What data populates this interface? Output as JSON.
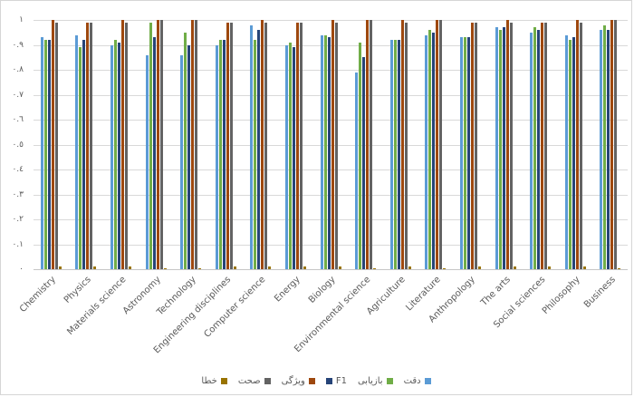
{
  "chart_data": {
    "type": "bar",
    "title": "",
    "xlabel": "",
    "ylabel": "",
    "ylim": [
      0,
      1
    ],
    "ytick_step": 0.1,
    "yticklabels_top_to_bottom": [
      "١",
      "٠.٩",
      "٠.٨",
      "٠.٧",
      "٠.٦",
      "٠.٥",
      "٠.٤",
      "٠.٣",
      "٠.٢",
      "٠.١",
      "٠"
    ],
    "grid": "horizontal",
    "gridline_color": "#d9d9d9",
    "tick_label_color": "#595959",
    "legend_position": "bottom-center",
    "legend_direction": "rtl",
    "categories": [
      "Chemistry",
      "Physics",
      "Materials science",
      "Astronomy",
      "Technology",
      "Engineering disciplines",
      "Computer science",
      "Energy",
      "Biology",
      "Environmental science",
      "Agriculture",
      "Literature",
      "Anthropology",
      "The arts",
      "Social sciences",
      "Philosophy",
      "Business"
    ],
    "series": [
      {
        "name": "دقت",
        "color": "#5B9BD5",
        "values": [
          0.93,
          0.94,
          0.9,
          0.86,
          0.86,
          0.9,
          0.98,
          0.9,
          0.94,
          0.79,
          0.92,
          0.94,
          0.93,
          0.97,
          0.95,
          0.94,
          0.96
        ]
      },
      {
        "name": "بازیابی",
        "color": "#70AD47",
        "values": [
          0.92,
          0.89,
          0.92,
          0.99,
          0.95,
          0.92,
          0.92,
          0.91,
          0.94,
          0.91,
          0.92,
          0.96,
          0.93,
          0.96,
          0.97,
          0.92,
          0.98
        ]
      },
      {
        "name": "F1",
        "color": "#264478",
        "values": [
          0.92,
          0.92,
          0.91,
          0.93,
          0.9,
          0.92,
          0.96,
          0.89,
          0.93,
          0.85,
          0.92,
          0.95,
          0.93,
          0.97,
          0.96,
          0.93,
          0.96
        ]
      },
      {
        "name": "ویژگی",
        "color": "#9E480E",
        "values": [
          1.0,
          0.99,
          1.0,
          1.0,
          1.0,
          0.99,
          1.0,
          0.99,
          1.0,
          1.0,
          1.0,
          1.0,
          0.99,
          1.0,
          0.99,
          1.0,
          1.0
        ]
      },
      {
        "name": "صحت",
        "color": "#636363",
        "values": [
          0.99,
          0.99,
          0.99,
          1.0,
          1.0,
          0.99,
          0.99,
          0.99,
          0.99,
          1.0,
          0.99,
          1.0,
          0.99,
          0.99,
          0.99,
          0.99,
          1.0
        ]
      },
      {
        "name": "خطا",
        "color": "#997300",
        "values": [
          0.01,
          0.01,
          0.01,
          0.005,
          0.005,
          0.01,
          0.01,
          0.01,
          0.01,
          0.005,
          0.01,
          0.005,
          0.01,
          0.01,
          0.01,
          0.01,
          0.005
        ]
      }
    ]
  }
}
